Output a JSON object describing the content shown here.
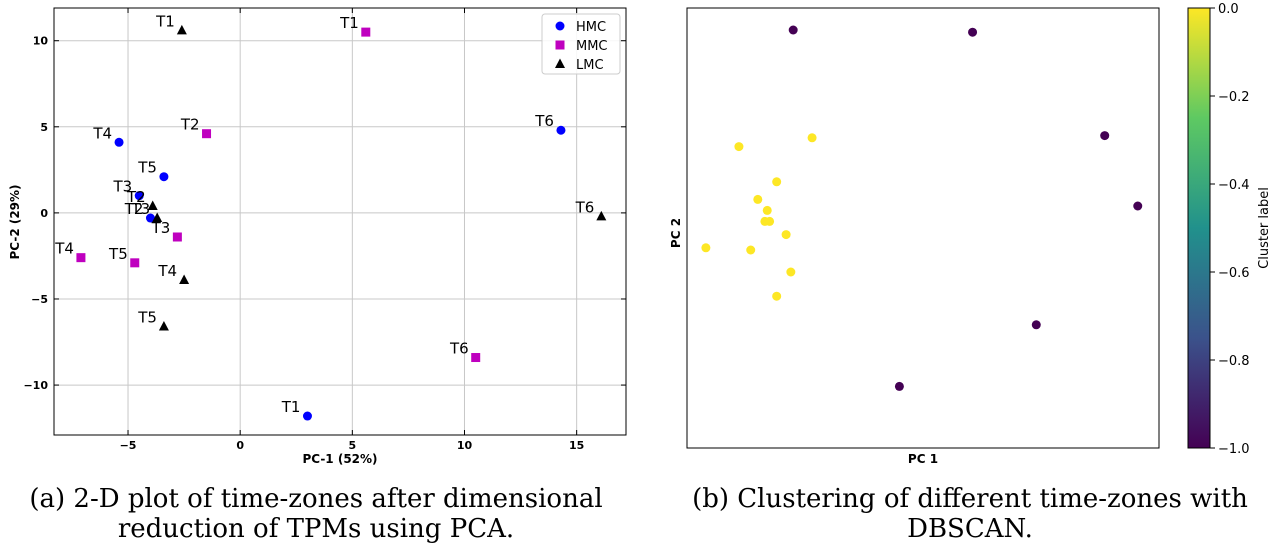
{
  "chart_data": [
    {
      "type": "scatter",
      "xlabel": "PC-1 (52%)",
      "ylabel": "PC-2 (29%)",
      "xlim": [
        -8.3,
        17.2
      ],
      "ylim": [
        -12.9,
        11.9
      ],
      "xticks": [
        -5,
        0,
        5,
        10,
        15
      ],
      "yticks": [
        -10,
        -5,
        0,
        5,
        10
      ],
      "grid": true,
      "legend_position": "top-right",
      "caption": [
        "(a) 2-D plot of time-zones after dimensional",
        "reduction of TPMs using PCA."
      ],
      "series": [
        {
          "name": "HMC",
          "marker": "circle",
          "color": "#0000ff",
          "points": [
            {
              "label": "T1",
              "x": 3.0,
              "y": -11.8
            },
            {
              "label": "T2",
              "x": -4.0,
              "y": -0.3
            },
            {
              "label": "T3",
              "x": -4.5,
              "y": 1.0
            },
            {
              "label": "T4",
              "x": -5.4,
              "y": 4.1
            },
            {
              "label": "T5",
              "x": -3.4,
              "y": 2.1
            },
            {
              "label": "T6",
              "x": 14.3,
              "y": 4.8
            }
          ]
        },
        {
          "name": "MMC",
          "marker": "square",
          "color": "#bf00bf",
          "points": [
            {
              "label": "T1",
              "x": 5.6,
              "y": 10.5
            },
            {
              "label": "T2",
              "x": -1.5,
              "y": 4.6
            },
            {
              "label": "T3",
              "x": -2.8,
              "y": -1.4
            },
            {
              "label": "T4",
              "x": -7.1,
              "y": -2.6
            },
            {
              "label": "T5",
              "x": -4.7,
              "y": -2.9
            },
            {
              "label": "T6",
              "x": 10.5,
              "y": -8.4
            }
          ]
        },
        {
          "name": "LMC",
          "marker": "triangle",
          "color": "#000000",
          "points": [
            {
              "label": "T1",
              "x": -2.6,
              "y": 10.6
            },
            {
              "label": "T2",
              "x": -3.9,
              "y": 0.4
            },
            {
              "label": "T3",
              "x": -3.7,
              "y": -0.3
            },
            {
              "label": "T4",
              "x": -2.5,
              "y": -3.9
            },
            {
              "label": "T5",
              "x": -3.4,
              "y": -6.6
            },
            {
              "label": "T6",
              "x": 16.1,
              "y": -0.2
            }
          ]
        }
      ]
    },
    {
      "type": "scatter",
      "xlabel": "PC 1",
      "ylabel": "PC 2",
      "xlim": [
        -1.0,
        1.0
      ],
      "ylim": [
        -1.0,
        1.0
      ],
      "colorbar": {
        "label": "Cluster label",
        "range": [
          -1.0,
          0.0
        ],
        "ticks": [
          0.0,
          -0.2,
          -0.4,
          -0.6,
          -0.8,
          -1.0
        ],
        "tick_labels": [
          "0.0",
          "−0.2",
          "−0.4",
          "−0.6",
          "−0.8",
          "−1.0"
        ],
        "colors": [
          "#440154",
          "#3b528b",
          "#21918c",
          "#5ec962",
          "#fde725"
        ]
      },
      "caption": [
        "(b) Clustering of different time-zones with",
        "DBSCAN."
      ],
      "points": [
        {
          "x": -0.55,
          "y": 0.9,
          "cluster": -1
        },
        {
          "x": 0.21,
          "y": 0.89,
          "cluster": -1
        },
        {
          "x": 0.77,
          "y": 0.42,
          "cluster": -1
        },
        {
          "x": 0.91,
          "y": 0.1,
          "cluster": -1
        },
        {
          "x": 0.48,
          "y": -0.44,
          "cluster": -1
        },
        {
          "x": -0.1,
          "y": -0.72,
          "cluster": -1
        },
        {
          "x": -0.78,
          "y": 0.37,
          "cluster": 0
        },
        {
          "x": -0.47,
          "y": 0.41,
          "cluster": 0
        },
        {
          "x": -0.62,
          "y": 0.21,
          "cluster": 0
        },
        {
          "x": -0.7,
          "y": 0.13,
          "cluster": 0
        },
        {
          "x": -0.66,
          "y": 0.08,
          "cluster": 0
        },
        {
          "x": -0.67,
          "y": 0.03,
          "cluster": 0
        },
        {
          "x": -0.65,
          "y": 0.03,
          "cluster": 0
        },
        {
          "x": -0.58,
          "y": -0.03,
          "cluster": 0
        },
        {
          "x": -0.92,
          "y": -0.09,
          "cluster": 0
        },
        {
          "x": -0.73,
          "y": -0.1,
          "cluster": 0
        },
        {
          "x": -0.56,
          "y": -0.2,
          "cluster": 0
        },
        {
          "x": -0.62,
          "y": -0.31,
          "cluster": 0
        }
      ]
    }
  ]
}
